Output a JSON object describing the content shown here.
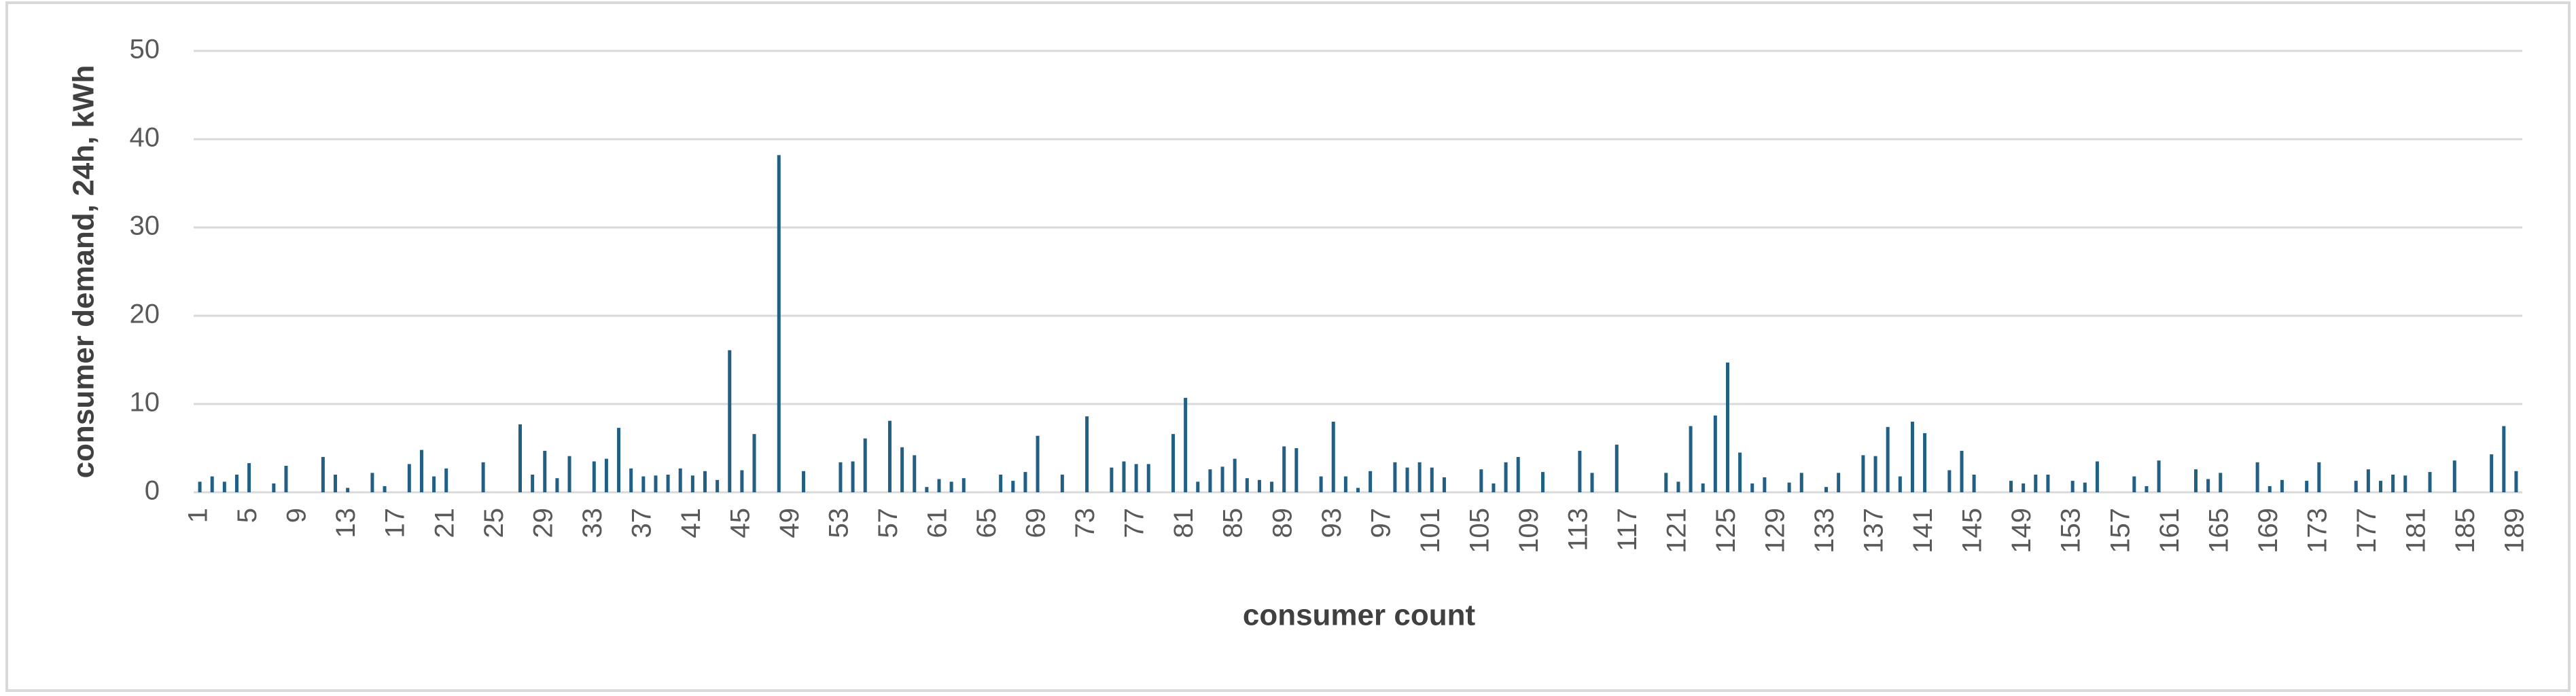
{
  "chart_data": {
    "type": "bar",
    "x_label": "consumer count",
    "y_label": "consumer demand, 24h, kWh",
    "color": "#215f85",
    "grid": true,
    "ylim": [
      0,
      50
    ],
    "yticks": [
      0,
      10,
      20,
      30,
      40,
      50
    ],
    "categories": [
      1,
      null,
      null,
      null,
      5,
      null,
      null,
      null,
      9,
      null,
      null,
      null,
      13,
      null,
      null,
      null,
      17,
      null,
      null,
      null,
      21,
      null,
      null,
      null,
      25,
      null,
      null,
      null,
      29,
      null,
      null,
      null,
      33,
      null,
      null,
      null,
      37,
      null,
      null,
      null,
      41,
      null,
      null,
      null,
      45,
      null,
      null,
      null,
      49,
      null,
      null,
      null,
      53,
      null,
      null,
      null,
      57,
      null,
      null,
      null,
      61,
      null,
      null,
      null,
      65,
      null,
      null,
      null,
      69,
      null,
      null,
      null,
      73,
      null,
      null,
      null,
      77,
      null,
      null,
      null,
      81,
      null,
      null,
      null,
      85,
      null,
      null,
      null,
      89,
      null,
      null,
      null,
      93,
      null,
      null,
      null,
      97,
      null,
      null,
      null,
      101,
      null,
      null,
      null,
      105,
      null,
      null,
      null,
      109,
      null,
      null,
      null,
      113,
      null,
      null,
      null,
      117,
      null,
      null,
      null,
      121,
      null,
      null,
      null,
      125,
      null,
      null,
      null,
      129,
      null,
      null,
      null,
      133,
      null,
      null,
      null,
      137,
      null,
      null,
      null,
      141,
      null,
      null,
      null,
      145,
      null,
      null,
      null,
      149,
      null,
      null,
      null,
      153,
      null,
      null,
      null,
      157,
      null,
      null,
      null,
      161,
      null,
      null,
      null,
      165,
      null,
      null,
      null,
      169,
      null,
      null,
      null,
      173,
      null,
      null,
      null,
      177,
      null,
      null,
      null,
      181,
      null,
      null,
      null,
      185,
      null,
      null,
      null,
      189
    ],
    "values": [
      1.2,
      1.8,
      1.2,
      2.0,
      3.3,
      0,
      1.0,
      3.0,
      0,
      0,
      4.0,
      2.0,
      0.5,
      0,
      2.2,
      0.7,
      0,
      3.2,
      4.8,
      1.8,
      2.7,
      0,
      0,
      3.4,
      0,
      0,
      7.7,
      2.0,
      4.7,
      1.6,
      4.1,
      0,
      3.5,
      3.8,
      7.3,
      2.7,
      1.8,
      1.9,
      2.0,
      2.7,
      1.9,
      2.4,
      1.4,
      16.1,
      2.5,
      6.6,
      0,
      38.2,
      0,
      2.4,
      0,
      0,
      3.4,
      3.5,
      6.1,
      0,
      8.1,
      5.1,
      4.2,
      0.6,
      1.5,
      1.2,
      1.6,
      0,
      0,
      2.0,
      1.3,
      2.3,
      6.4,
      0,
      2.0,
      0,
      8.6,
      0,
      2.8,
      3.5,
      3.2,
      3.2,
      0,
      6.6,
      10.7,
      1.2,
      2.6,
      2.9,
      3.8,
      1.6,
      1.4,
      1.2,
      5.2,
      5.0,
      0,
      1.8,
      8.0,
      1.8,
      0.5,
      2.4,
      0,
      3.4,
      2.8,
      3.4,
      2.8,
      1.7,
      0,
      0,
      2.6,
      1.0,
      3.4,
      4.0,
      0,
      2.3,
      0,
      0,
      4.7,
      2.2,
      0,
      5.4,
      0,
      0,
      0,
      2.2,
      1.2,
      7.5,
      1.0,
      8.7,
      14.7,
      4.5,
      1.0,
      1.7,
      0,
      1.1,
      2.2,
      0,
      0.6,
      2.2,
      0,
      4.2,
      4.1,
      7.4,
      1.8,
      8.0,
      6.7,
      0,
      2.5,
      4.7,
      2.0,
      0,
      0,
      1.3,
      1.0,
      2.0,
      2.0,
      0,
      1.3,
      1.1,
      3.5,
      0,
      0,
      1.8,
      0.7,
      3.6,
      0,
      0,
      2.6,
      1.5,
      2.2,
      0,
      0,
      3.4,
      0.7,
      1.4,
      0,
      1.3,
      3.4,
      0,
      0,
      1.3,
      2.6,
      1.3,
      2.0,
      1.9,
      0,
      2.3,
      0,
      3.6,
      0,
      0,
      4.3,
      7.5,
      2.4
    ]
  }
}
